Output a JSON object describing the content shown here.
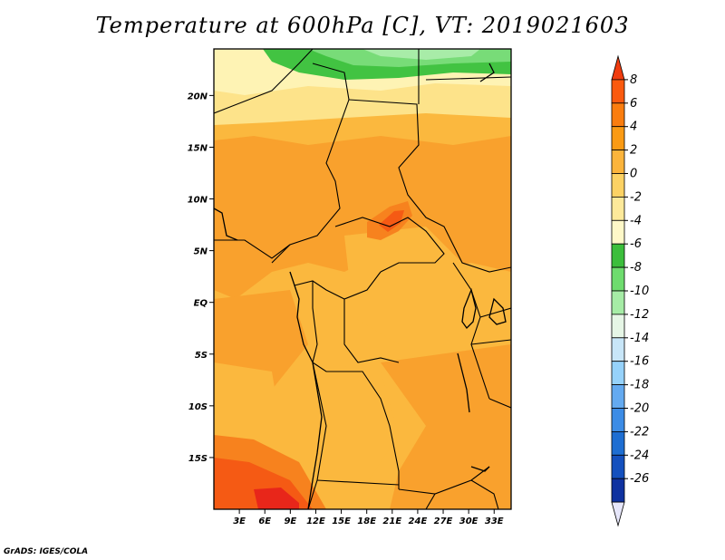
{
  "title": "Temperature at 600hPa [C], VT: 2019021603",
  "credit": "GrADS: IGES/COLA",
  "map": {
    "lat_labels": [
      "20N",
      "15N",
      "10N",
      "5N",
      "EQ",
      "5S",
      "10S",
      "15S"
    ],
    "lon_labels": [
      "3E",
      "6E",
      "9E",
      "12E",
      "15E",
      "18E",
      "21E",
      "24E",
      "27E",
      "30E",
      "33E"
    ],
    "lat_values": [
      20,
      15,
      10,
      5,
      0,
      -5,
      -10,
      -15
    ],
    "lon_values": [
      3,
      6,
      9,
      12,
      15,
      18,
      21,
      24,
      27,
      30,
      33
    ],
    "lat_range": [
      -20,
      24.5
    ],
    "lon_range": [
      0,
      35
    ]
  },
  "colorbar": {
    "labels": [
      "8",
      "6",
      "4",
      "2",
      "0",
      "-2",
      "-4",
      "-6",
      "-8",
      "-10",
      "-12",
      "-14",
      "-16",
      "-18",
      "-20",
      "-22",
      "-24",
      "-26"
    ],
    "colors": [
      "#f03c0f",
      "#fa5a0f",
      "#fa7d0f",
      "#fa9a14",
      "#fbb43c",
      "#fcd264",
      "#fde99a",
      "#fef8c8",
      "#3cbe3c",
      "#6edc6e",
      "#a6eca6",
      "#e6f6e6",
      "#c8e6f8",
      "#96d2fa",
      "#64aaf0",
      "#3c8ce6",
      "#1e6ed2",
      "#1450be",
      "#0f32a0",
      "#0a1e78"
    ]
  },
  "legend_colors": {
    "c8": "#e8261a",
    "c6": "#f55a14",
    "c4": "#f7821e",
    "c2": "#f9a12d",
    "c0": "#fbb83e",
    "cm2": "#fde38a",
    "cm4": "#fef3b4",
    "cm6": "#42c342",
    "cm8": "#78dc78",
    "cm10": "#a8eca8"
  }
}
